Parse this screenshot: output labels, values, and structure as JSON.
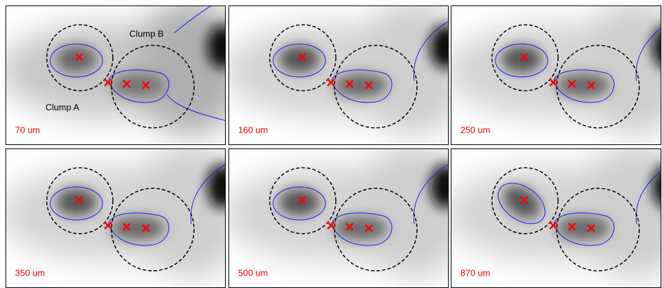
{
  "panels": [
    {
      "label": "70 um"
    },
    {
      "label": "160 um"
    },
    {
      "label": "250 um"
    },
    {
      "label": "350 um"
    },
    {
      "label": "500 um"
    },
    {
      "label": "870 um"
    }
  ],
  "annotations": {
    "clump_a": "Clump A",
    "clump_b": "Clump B"
  }
}
